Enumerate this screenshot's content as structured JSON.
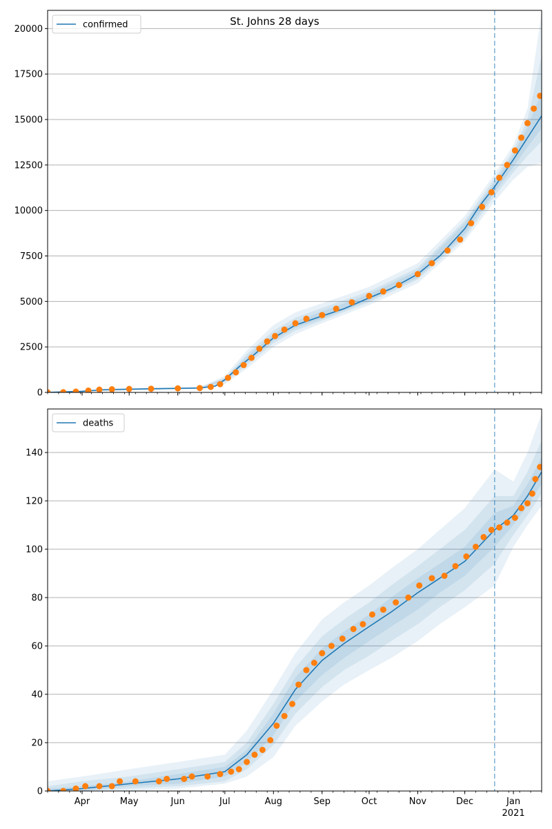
{
  "title": "St. Johns 28 days",
  "colors": {
    "line": "#1f77b4",
    "points": "#ff7f0e",
    "band": "#1f77b4",
    "grid": "#b0b0b0",
    "cutoff": "#1f77b4"
  },
  "x_axis": {
    "start": "2020-03-10",
    "end": "2021-01-19",
    "ticks": [
      {
        "date": "2020-04-01",
        "label": "Apr"
      },
      {
        "date": "2020-05-01",
        "label": "May"
      },
      {
        "date": "2020-06-01",
        "label": "Jun"
      },
      {
        "date": "2020-07-01",
        "label": "Jul"
      },
      {
        "date": "2020-08-01",
        "label": "Aug"
      },
      {
        "date": "2020-09-01",
        "label": "Sep"
      },
      {
        "date": "2020-10-01",
        "label": "Oct"
      },
      {
        "date": "2020-11-01",
        "label": "Nov"
      },
      {
        "date": "2020-12-01",
        "label": "Dec"
      },
      {
        "date": "2021-01-01",
        "label": "Jan"
      }
    ],
    "year_label": "2021",
    "cutoff_date": "2020-12-20"
  },
  "chart_data": [
    {
      "type": "line",
      "series_name": "confirmed",
      "legend_position": "upper-left",
      "ylim": [
        0,
        21000
      ],
      "yticks": [
        0,
        2500,
        5000,
        7500,
        10000,
        12500,
        15000,
        17500,
        20000
      ],
      "grid": true,
      "fit_line": [
        [
          "2020-03-10",
          0
        ],
        [
          "2020-04-01",
          60
        ],
        [
          "2020-04-15",
          150
        ],
        [
          "2020-05-15",
          200
        ],
        [
          "2020-06-15",
          240
        ],
        [
          "2020-06-25",
          350
        ],
        [
          "2020-07-01",
          700
        ],
        [
          "2020-07-10",
          1400
        ],
        [
          "2020-07-20",
          2100
        ],
        [
          "2020-08-01",
          3000
        ],
        [
          "2020-08-15",
          3700
        ],
        [
          "2020-09-01",
          4200
        ],
        [
          "2020-09-15",
          4600
        ],
        [
          "2020-10-01",
          5200
        ],
        [
          "2020-10-15",
          5700
        ],
        [
          "2020-11-01",
          6500
        ],
        [
          "2020-11-15",
          7500
        ],
        [
          "2020-12-01",
          9000
        ],
        [
          "2020-12-10",
          10200
        ],
        [
          "2020-12-20",
          11300
        ],
        [
          "2021-01-01",
          12800
        ],
        [
          "2021-01-10",
          14000
        ],
        [
          "2021-01-19",
          15200
        ]
      ],
      "bands": [
        [
          [
            "2020-03-10",
            0,
            50
          ],
          [
            "2020-06-15",
            200,
            300
          ],
          [
            "2020-07-01",
            450,
            900
          ],
          [
            "2020-07-15",
            1300,
            2300
          ],
          [
            "2020-08-01",
            2500,
            3700
          ],
          [
            "2020-08-15",
            3200,
            4400
          ],
          [
            "2020-09-01",
            3800,
            4900
          ],
          [
            "2020-10-01",
            4800,
            5800
          ],
          [
            "2020-11-01",
            6000,
            7100
          ],
          [
            "2020-12-01",
            8300,
            9700
          ],
          [
            "2020-12-20",
            10500,
            12000
          ],
          [
            "2021-01-01",
            11700,
            13600
          ],
          [
            "2021-01-10",
            12400,
            15600
          ],
          [
            "2021-01-19",
            12600,
            20900
          ]
        ],
        [
          [
            "2020-03-10",
            0,
            30
          ],
          [
            "2020-06-15",
            210,
            270
          ],
          [
            "2020-07-01",
            550,
            800
          ],
          [
            "2020-07-15",
            1500,
            2100
          ],
          [
            "2020-08-01",
            2700,
            3400
          ],
          [
            "2020-08-15",
            3400,
            4100
          ],
          [
            "2020-09-01",
            3950,
            4650
          ],
          [
            "2020-10-01",
            4950,
            5550
          ],
          [
            "2020-11-01",
            6200,
            6850
          ],
          [
            "2020-12-01",
            8500,
            9450
          ],
          [
            "2020-12-20",
            10800,
            11750
          ],
          [
            "2021-01-01",
            12100,
            13300
          ],
          [
            "2021-01-10",
            13000,
            15000
          ],
          [
            "2021-01-19",
            13800,
            18500
          ]
        ],
        [
          [
            "2020-03-10",
            0,
            15
          ],
          [
            "2020-06-15",
            220,
            255
          ],
          [
            "2020-07-01",
            620,
            760
          ],
          [
            "2020-07-15",
            1650,
            1950
          ],
          [
            "2020-08-01",
            2850,
            3200
          ],
          [
            "2020-08-15",
            3550,
            3900
          ],
          [
            "2020-09-01",
            4050,
            4450
          ],
          [
            "2020-10-01",
            5050,
            5400
          ],
          [
            "2020-11-01",
            6300,
            6700
          ],
          [
            "2020-12-01",
            8700,
            9300
          ],
          [
            "2020-12-20",
            11000,
            11550
          ],
          [
            "2021-01-01",
            12400,
            13100
          ],
          [
            "2021-01-10",
            13500,
            14600
          ],
          [
            "2021-01-19",
            14500,
            16500
          ]
        ]
      ],
      "observed": [
        [
          "2020-03-10",
          5
        ],
        [
          "2020-03-20",
          10
        ],
        [
          "2020-03-28",
          40
        ],
        [
          "2020-04-05",
          100
        ],
        [
          "2020-04-12",
          150
        ],
        [
          "2020-04-20",
          170
        ],
        [
          "2020-05-01",
          190
        ],
        [
          "2020-05-15",
          200
        ],
        [
          "2020-06-01",
          220
        ],
        [
          "2020-06-15",
          240
        ],
        [
          "2020-06-22",
          300
        ],
        [
          "2020-06-28",
          450
        ],
        [
          "2020-07-03",
          800
        ],
        [
          "2020-07-08",
          1100
        ],
        [
          "2020-07-13",
          1500
        ],
        [
          "2020-07-18",
          1900
        ],
        [
          "2020-07-23",
          2400
        ],
        [
          "2020-07-28",
          2800
        ],
        [
          "2020-08-02",
          3100
        ],
        [
          "2020-08-08",
          3450
        ],
        [
          "2020-08-15",
          3800
        ],
        [
          "2020-08-22",
          4050
        ],
        [
          "2020-09-01",
          4250
        ],
        [
          "2020-09-10",
          4600
        ],
        [
          "2020-09-20",
          4950
        ],
        [
          "2020-10-01",
          5300
        ],
        [
          "2020-10-10",
          5550
        ],
        [
          "2020-10-20",
          5900
        ],
        [
          "2020-11-01",
          6500
        ],
        [
          "2020-11-10",
          7100
        ],
        [
          "2020-11-20",
          7800
        ],
        [
          "2020-11-28",
          8400
        ],
        [
          "2020-12-05",
          9300
        ],
        [
          "2020-12-12",
          10200
        ],
        [
          "2020-12-18",
          11000
        ],
        [
          "2020-12-23",
          11800
        ],
        [
          "2020-12-28",
          12500
        ],
        [
          "2021-01-02",
          13300
        ],
        [
          "2021-01-06",
          14000
        ],
        [
          "2021-01-10",
          14800
        ],
        [
          "2021-01-14",
          15600
        ],
        [
          "2021-01-18",
          16300
        ]
      ]
    },
    {
      "type": "line",
      "series_name": "deaths",
      "legend_position": "upper-left",
      "ylim": [
        0,
        158
      ],
      "yticks": [
        0,
        20,
        40,
        60,
        80,
        100,
        120,
        140
      ],
      "grid": true,
      "fit_line": [
        [
          "2020-03-10",
          0
        ],
        [
          "2020-04-01",
          1
        ],
        [
          "2020-05-01",
          3
        ],
        [
          "2020-06-01",
          5
        ],
        [
          "2020-07-01",
          8
        ],
        [
          "2020-07-15",
          15
        ],
        [
          "2020-08-01",
          28
        ],
        [
          "2020-08-15",
          42
        ],
        [
          "2020-09-01",
          54
        ],
        [
          "2020-09-15",
          61
        ],
        [
          "2020-10-01",
          68
        ],
        [
          "2020-10-15",
          74
        ],
        [
          "2020-11-01",
          82
        ],
        [
          "2020-11-15",
          88
        ],
        [
          "2020-12-01",
          95
        ],
        [
          "2020-12-20",
          108
        ],
        [
          "2021-01-01",
          114
        ],
        [
          "2021-01-10",
          122
        ],
        [
          "2021-01-19",
          132
        ]
      ],
      "bands": [
        [
          [
            "2020-03-10",
            0,
            4
          ],
          [
            "2020-04-01",
            0,
            6
          ],
          [
            "2020-05-01",
            0,
            9
          ],
          [
            "2020-06-01",
            1,
            12
          ],
          [
            "2020-07-01",
            3,
            15
          ],
          [
            "2020-07-15",
            6,
            25
          ],
          [
            "2020-08-01",
            14,
            42
          ],
          [
            "2020-08-15",
            27,
            57
          ],
          [
            "2020-09-01",
            37,
            71
          ],
          [
            "2020-09-15",
            44,
            78
          ],
          [
            "2020-10-01",
            50,
            85
          ],
          [
            "2020-10-15",
            55,
            92
          ],
          [
            "2020-11-01",
            62,
            100
          ],
          [
            "2020-11-15",
            69,
            108
          ],
          [
            "2020-12-01",
            76,
            117
          ],
          [
            "2020-12-20",
            85,
            133
          ],
          [
            "2021-01-01",
            101,
            128
          ],
          [
            "2021-01-10",
            110,
            140
          ],
          [
            "2021-01-19",
            118,
            156
          ]
        ],
        [
          [
            "2020-03-10",
            0,
            2
          ],
          [
            "2020-04-01",
            0,
            4
          ],
          [
            "2020-05-01",
            1,
            6
          ],
          [
            "2020-06-01",
            2,
            9
          ],
          [
            "2020-07-01",
            4,
            12
          ],
          [
            "2020-07-15",
            9,
            20
          ],
          [
            "2020-08-01",
            19,
            36
          ],
          [
            "2020-08-15",
            32,
            51
          ],
          [
            "2020-09-01",
            43,
            64
          ],
          [
            "2020-09-15",
            50,
            71
          ],
          [
            "2020-10-01",
            56,
            78
          ],
          [
            "2020-10-15",
            62,
            85
          ],
          [
            "2020-11-01",
            69,
            93
          ],
          [
            "2020-11-15",
            76,
            100
          ],
          [
            "2020-12-01",
            83,
            108
          ],
          [
            "2020-12-20",
            94,
            122
          ],
          [
            "2021-01-01",
            106,
            122
          ],
          [
            "2021-01-10",
            114,
            132
          ],
          [
            "2021-01-19",
            123,
            145
          ]
        ],
        [
          [
            "2020-03-10",
            0,
            1
          ],
          [
            "2020-04-01",
            0,
            2
          ],
          [
            "2020-05-01",
            2,
            4
          ],
          [
            "2020-06-01",
            3,
            7
          ],
          [
            "2020-07-01",
            6,
            10
          ],
          [
            "2020-07-15",
            12,
            17
          ],
          [
            "2020-08-01",
            23,
            32
          ],
          [
            "2020-08-15",
            37,
            47
          ],
          [
            "2020-09-01",
            48,
            59
          ],
          [
            "2020-09-15",
            55,
            66
          ],
          [
            "2020-10-01",
            62,
            73
          ],
          [
            "2020-10-15",
            68,
            80
          ],
          [
            "2020-11-01",
            75,
            88
          ],
          [
            "2020-11-15",
            82,
            94
          ],
          [
            "2020-12-01",
            89,
            101
          ],
          [
            "2020-12-20",
            101,
            115
          ],
          [
            "2021-01-01",
            110,
            118
          ],
          [
            "2021-01-10",
            118,
            127
          ],
          [
            "2021-01-19",
            127,
            138
          ]
        ]
      ],
      "observed": [
        [
          "2020-03-10",
          0
        ],
        [
          "2020-03-20",
          0
        ],
        [
          "2020-03-28",
          1
        ],
        [
          "2020-04-03",
          2
        ],
        [
          "2020-04-12",
          2
        ],
        [
          "2020-04-20",
          2
        ],
        [
          "2020-04-25",
          4
        ],
        [
          "2020-05-05",
          4
        ],
        [
          "2020-05-20",
          4
        ],
        [
          "2020-05-25",
          5
        ],
        [
          "2020-06-05",
          5
        ],
        [
          "2020-06-10",
          6
        ],
        [
          "2020-06-20",
          6
        ],
        [
          "2020-06-28",
          7
        ],
        [
          "2020-07-05",
          8
        ],
        [
          "2020-07-10",
          9
        ],
        [
          "2020-07-15",
          12
        ],
        [
          "2020-07-20",
          15
        ],
        [
          "2020-07-25",
          17
        ],
        [
          "2020-07-30",
          21
        ],
        [
          "2020-08-03",
          27
        ],
        [
          "2020-08-08",
          31
        ],
        [
          "2020-08-13",
          36
        ],
        [
          "2020-08-17",
          44
        ],
        [
          "2020-08-22",
          50
        ],
        [
          "2020-08-27",
          53
        ],
        [
          "2020-09-01",
          57
        ],
        [
          "2020-09-07",
          60
        ],
        [
          "2020-09-14",
          63
        ],
        [
          "2020-09-21",
          67
        ],
        [
          "2020-09-27",
          69
        ],
        [
          "2020-10-03",
          73
        ],
        [
          "2020-10-10",
          75
        ],
        [
          "2020-10-18",
          78
        ],
        [
          "2020-10-26",
          80
        ],
        [
          "2020-11-02",
          85
        ],
        [
          "2020-11-10",
          88
        ],
        [
          "2020-11-18",
          89
        ],
        [
          "2020-11-25",
          93
        ],
        [
          "2020-12-02",
          97
        ],
        [
          "2020-12-08",
          101
        ],
        [
          "2020-12-13",
          105
        ],
        [
          "2020-12-18",
          108
        ],
        [
          "2020-12-23",
          109
        ],
        [
          "2020-12-28",
          111
        ],
        [
          "2021-01-02",
          113
        ],
        [
          "2021-01-06",
          117
        ],
        [
          "2021-01-10",
          119
        ],
        [
          "2021-01-13",
          123
        ],
        [
          "2021-01-15",
          129
        ],
        [
          "2021-01-18",
          134
        ]
      ]
    }
  ]
}
